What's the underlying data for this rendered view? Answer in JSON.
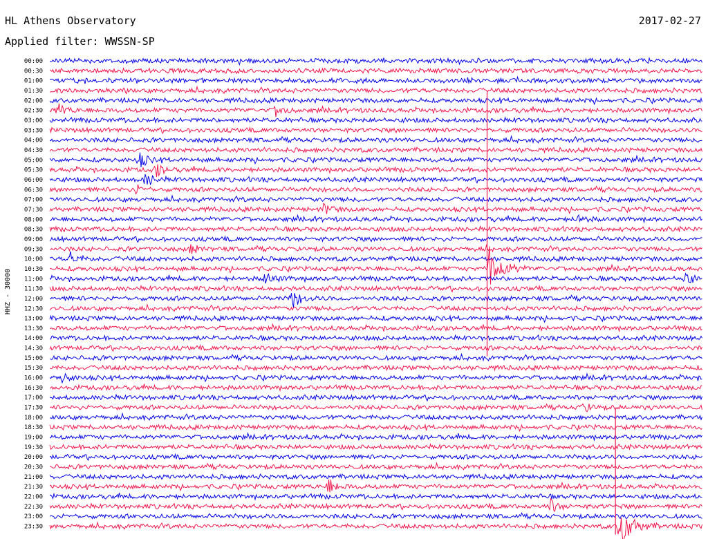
{
  "header": {
    "station": "HL Athens Observatory",
    "date": "2017-02-27",
    "filter": "Applied filter: WWSSN-SP"
  },
  "chart_data": {
    "type": "line",
    "ylabel": "HHZ - 30000",
    "rows": [
      "00:00",
      "00:30",
      "01:00",
      "01:30",
      "02:00",
      "02:30",
      "03:00",
      "03:30",
      "04:00",
      "04:30",
      "05:00",
      "05:30",
      "06:00",
      "06:30",
      "07:00",
      "07:30",
      "08:00",
      "08:30",
      "09:00",
      "09:30",
      "10:00",
      "10:30",
      "11:00",
      "11:30",
      "12:00",
      "12:30",
      "13:00",
      "13:30",
      "14:00",
      "14:30",
      "15:00",
      "15:30",
      "16:00",
      "16:30",
      "17:00",
      "17:30",
      "18:00",
      "18:30",
      "19:00",
      "19:30",
      "20:00",
      "20:30",
      "21:00",
      "21:30",
      "22:00",
      "22:30",
      "23:00",
      "23:30"
    ],
    "series": [
      {
        "color": "#0000e6"
      },
      {
        "color": "#f0164c"
      }
    ],
    "x_span_minutes": 30,
    "events": [
      {
        "row": "02:30",
        "minute": 0.4,
        "amplitude": 1.5
      },
      {
        "row": "02:30",
        "minute": 10.4,
        "amplitude": 1.6
      },
      {
        "row": "05:00",
        "minute": 4.1,
        "amplitude": 1.8
      },
      {
        "row": "05:30",
        "minute": 4.9,
        "amplitude": 1.4
      },
      {
        "row": "06:00",
        "minute": 4.4,
        "amplitude": 1.6
      },
      {
        "row": "06:30",
        "minute": 3.9,
        "amplitude": 1.2
      },
      {
        "row": "07:30",
        "minute": 12.6,
        "amplitude": 1.4
      },
      {
        "row": "08:00",
        "minute": 24.2,
        "amplitude": 1.3
      },
      {
        "row": "09:30",
        "minute": 6.5,
        "amplitude": 1.2
      },
      {
        "row": "10:00",
        "minute": 0.9,
        "amplitude": 1.7
      },
      {
        "row": "10:30",
        "minute": 20.2,
        "amplitude": 5.0
      },
      {
        "row": "11:00",
        "minute": 9.9,
        "amplitude": 1.6
      },
      {
        "row": "11:00",
        "minute": 29.2,
        "amplitude": 1.5
      },
      {
        "row": "12:00",
        "minute": 11.1,
        "amplitude": 2.4
      },
      {
        "row": "16:00",
        "minute": 0.6,
        "amplitude": 1.3
      },
      {
        "row": "17:30",
        "minute": 24.5,
        "amplitude": 1.3
      },
      {
        "row": "21:30",
        "minute": 12.8,
        "amplitude": 1.8
      },
      {
        "row": "22:30",
        "minute": 23.0,
        "amplitude": 1.6
      },
      {
        "row": "23:30",
        "minute": 26.2,
        "amplitude": 5.0
      }
    ],
    "long_spikes": [
      {
        "from_row": "02:00",
        "to_row": "14:30",
        "minute": 20.1
      },
      {
        "from_row": "18:00",
        "to_row": "23:30",
        "minute": 26.0
      }
    ]
  }
}
